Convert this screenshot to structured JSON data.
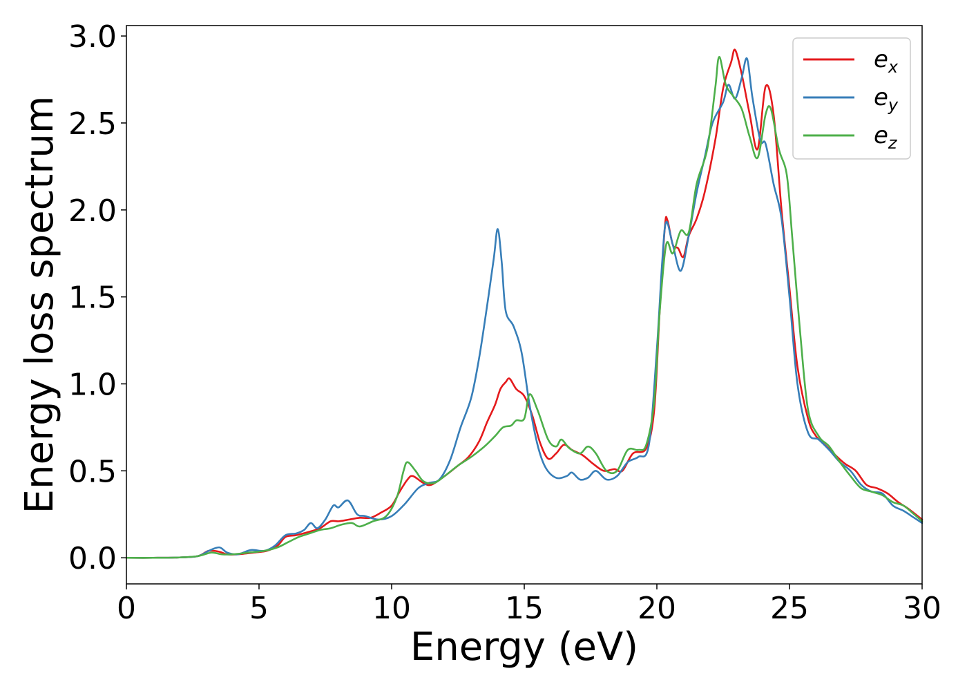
{
  "chart_data": {
    "type": "line",
    "xlabel": "Energy (eV)",
    "ylabel": "Energy loss spectrum",
    "xlim": [
      0,
      30
    ],
    "ylim": [
      -0.15,
      3.06
    ],
    "xticks": [
      0,
      5,
      10,
      15,
      20,
      25,
      30
    ],
    "xtick_labels": [
      "0",
      "5",
      "10",
      "15",
      "20",
      "25",
      "30"
    ],
    "yticks": [
      0.0,
      0.5,
      1.0,
      1.5,
      2.0,
      2.5,
      3.0
    ],
    "ytick_labels": [
      "0.0",
      "0.5",
      "1.0",
      "1.5",
      "2.0",
      "2.5",
      "3.0"
    ],
    "grid": false,
    "legend_position": "top-right",
    "series": [
      {
        "name": "e",
        "subscript": "x",
        "color": "#e41a1c",
        "points": [
          [
            0,
            0.0
          ],
          [
            1,
            0.0
          ],
          [
            2,
            0.002
          ],
          [
            2.7,
            0.01
          ],
          [
            3.1,
            0.04
          ],
          [
            3.5,
            0.035
          ],
          [
            3.8,
            0.02
          ],
          [
            4.2,
            0.02
          ],
          [
            4.8,
            0.03
          ],
          [
            5.3,
            0.04
          ],
          [
            5.7,
            0.07
          ],
          [
            6.0,
            0.12
          ],
          [
            6.4,
            0.13
          ],
          [
            6.9,
            0.15
          ],
          [
            7.3,
            0.17
          ],
          [
            7.7,
            0.21
          ],
          [
            8.0,
            0.21
          ],
          [
            8.4,
            0.22
          ],
          [
            8.8,
            0.23
          ],
          [
            9.2,
            0.23
          ],
          [
            9.6,
            0.26
          ],
          [
            10.0,
            0.3
          ],
          [
            10.3,
            0.38
          ],
          [
            10.6,
            0.45
          ],
          [
            10.8,
            0.47
          ],
          [
            11.2,
            0.43
          ],
          [
            11.5,
            0.42
          ],
          [
            12.0,
            0.47
          ],
          [
            12.5,
            0.53
          ],
          [
            12.9,
            0.58
          ],
          [
            13.3,
            0.67
          ],
          [
            13.6,
            0.78
          ],
          [
            13.9,
            0.88
          ],
          [
            14.1,
            0.97
          ],
          [
            14.3,
            1.01
          ],
          [
            14.45,
            1.03
          ],
          [
            14.7,
            0.97
          ],
          [
            15.0,
            0.93
          ],
          [
            15.3,
            0.82
          ],
          [
            15.6,
            0.66
          ],
          [
            15.9,
            0.57
          ],
          [
            16.2,
            0.6
          ],
          [
            16.5,
            0.65
          ],
          [
            16.8,
            0.62
          ],
          [
            17.2,
            0.59
          ],
          [
            17.6,
            0.54
          ],
          [
            18.0,
            0.5
          ],
          [
            18.4,
            0.51
          ],
          [
            18.7,
            0.5
          ],
          [
            19.1,
            0.6
          ],
          [
            19.6,
            0.63
          ],
          [
            19.9,
            0.85
          ],
          [
            20.1,
            1.4
          ],
          [
            20.3,
            1.9
          ],
          [
            20.4,
            1.94
          ],
          [
            20.6,
            1.8
          ],
          [
            20.8,
            1.78
          ],
          [
            21.0,
            1.73
          ],
          [
            21.2,
            1.85
          ],
          [
            21.5,
            1.95
          ],
          [
            21.8,
            2.1
          ],
          [
            22.2,
            2.4
          ],
          [
            22.5,
            2.7
          ],
          [
            22.8,
            2.85
          ],
          [
            22.95,
            2.92
          ],
          [
            23.2,
            2.78
          ],
          [
            23.5,
            2.55
          ],
          [
            23.8,
            2.35
          ],
          [
            24.1,
            2.71
          ],
          [
            24.4,
            2.55
          ],
          [
            24.7,
            2.0
          ],
          [
            25.0,
            1.55
          ],
          [
            25.3,
            1.1
          ],
          [
            25.7,
            0.8
          ],
          [
            26.0,
            0.7
          ],
          [
            26.4,
            0.64
          ],
          [
            26.8,
            0.58
          ],
          [
            27.1,
            0.54
          ],
          [
            27.5,
            0.5
          ],
          [
            27.9,
            0.42
          ],
          [
            28.3,
            0.4
          ],
          [
            28.7,
            0.37
          ],
          [
            29.1,
            0.32
          ],
          [
            29.5,
            0.28
          ],
          [
            30,
            0.22
          ]
        ]
      },
      {
        "name": "e",
        "subscript": "y",
        "color": "#377eb8",
        "points": [
          [
            0,
            0.0
          ],
          [
            1,
            0.0
          ],
          [
            2,
            0.002
          ],
          [
            2.7,
            0.01
          ],
          [
            3.1,
            0.04
          ],
          [
            3.5,
            0.06
          ],
          [
            3.8,
            0.03
          ],
          [
            4.2,
            0.02
          ],
          [
            4.7,
            0.045
          ],
          [
            5.2,
            0.04
          ],
          [
            5.6,
            0.07
          ],
          [
            6.0,
            0.13
          ],
          [
            6.4,
            0.14
          ],
          [
            6.7,
            0.16
          ],
          [
            6.95,
            0.2
          ],
          [
            7.2,
            0.17
          ],
          [
            7.5,
            0.22
          ],
          [
            7.8,
            0.3
          ],
          [
            8.0,
            0.29
          ],
          [
            8.35,
            0.33
          ],
          [
            8.7,
            0.25
          ],
          [
            9.0,
            0.24
          ],
          [
            9.5,
            0.22
          ],
          [
            10.0,
            0.24
          ],
          [
            10.5,
            0.31
          ],
          [
            11.0,
            0.4
          ],
          [
            11.4,
            0.43
          ],
          [
            11.8,
            0.45
          ],
          [
            12.2,
            0.56
          ],
          [
            12.6,
            0.75
          ],
          [
            13.0,
            0.92
          ],
          [
            13.3,
            1.15
          ],
          [
            13.6,
            1.45
          ],
          [
            13.85,
            1.72
          ],
          [
            14.0,
            1.89
          ],
          [
            14.15,
            1.7
          ],
          [
            14.3,
            1.42
          ],
          [
            14.6,
            1.33
          ],
          [
            14.9,
            1.18
          ],
          [
            15.2,
            0.88
          ],
          [
            15.5,
            0.65
          ],
          [
            15.8,
            0.52
          ],
          [
            16.2,
            0.46
          ],
          [
            16.6,
            0.47
          ],
          [
            16.8,
            0.49
          ],
          [
            17.1,
            0.45
          ],
          [
            17.4,
            0.46
          ],
          [
            17.7,
            0.5
          ],
          [
            18.1,
            0.45
          ],
          [
            18.5,
            0.47
          ],
          [
            18.9,
            0.55
          ],
          [
            19.3,
            0.58
          ],
          [
            19.7,
            0.65
          ],
          [
            20.0,
            1.2
          ],
          [
            20.2,
            1.7
          ],
          [
            20.35,
            1.93
          ],
          [
            20.6,
            1.8
          ],
          [
            20.9,
            1.65
          ],
          [
            21.2,
            1.85
          ],
          [
            21.5,
            2.1
          ],
          [
            21.8,
            2.3
          ],
          [
            22.1,
            2.5
          ],
          [
            22.5,
            2.62
          ],
          [
            22.7,
            2.72
          ],
          [
            22.95,
            2.64
          ],
          [
            23.2,
            2.76
          ],
          [
            23.4,
            2.87
          ],
          [
            23.6,
            2.65
          ],
          [
            23.9,
            2.4
          ],
          [
            24.1,
            2.38
          ],
          [
            24.4,
            2.15
          ],
          [
            24.7,
            1.95
          ],
          [
            25.0,
            1.5
          ],
          [
            25.3,
            1.0
          ],
          [
            25.7,
            0.72
          ],
          [
            26.1,
            0.68
          ],
          [
            26.5,
            0.62
          ],
          [
            26.9,
            0.55
          ],
          [
            27.3,
            0.5
          ],
          [
            27.7,
            0.42
          ],
          [
            28.1,
            0.38
          ],
          [
            28.5,
            0.37
          ],
          [
            28.9,
            0.3
          ],
          [
            29.3,
            0.27
          ],
          [
            29.7,
            0.23
          ],
          [
            30,
            0.2
          ]
        ]
      },
      {
        "name": "e",
        "subscript": "z",
        "color": "#4daf4a",
        "points": [
          [
            0,
            0.0
          ],
          [
            1,
            0.0
          ],
          [
            2,
            0.002
          ],
          [
            2.7,
            0.01
          ],
          [
            3.2,
            0.03
          ],
          [
            3.6,
            0.02
          ],
          [
            4.0,
            0.02
          ],
          [
            4.6,
            0.03
          ],
          [
            5.2,
            0.04
          ],
          [
            5.7,
            0.06
          ],
          [
            6.1,
            0.09
          ],
          [
            6.5,
            0.12
          ],
          [
            6.9,
            0.14
          ],
          [
            7.3,
            0.16
          ],
          [
            7.7,
            0.17
          ],
          [
            8.1,
            0.19
          ],
          [
            8.5,
            0.2
          ],
          [
            8.8,
            0.18
          ],
          [
            9.3,
            0.21
          ],
          [
            9.8,
            0.24
          ],
          [
            10.2,
            0.35
          ],
          [
            10.45,
            0.5
          ],
          [
            10.6,
            0.55
          ],
          [
            10.9,
            0.5
          ],
          [
            11.2,
            0.44
          ],
          [
            11.6,
            0.43
          ],
          [
            12.0,
            0.47
          ],
          [
            12.5,
            0.53
          ],
          [
            13.0,
            0.58
          ],
          [
            13.5,
            0.64
          ],
          [
            13.9,
            0.7
          ],
          [
            14.2,
            0.75
          ],
          [
            14.5,
            0.76
          ],
          [
            14.7,
            0.79
          ],
          [
            15.0,
            0.8
          ],
          [
            15.2,
            0.94
          ],
          [
            15.5,
            0.85
          ],
          [
            15.9,
            0.68
          ],
          [
            16.2,
            0.64
          ],
          [
            16.4,
            0.68
          ],
          [
            16.7,
            0.63
          ],
          [
            17.1,
            0.6
          ],
          [
            17.4,
            0.64
          ],
          [
            17.7,
            0.6
          ],
          [
            18.1,
            0.5
          ],
          [
            18.5,
            0.5
          ],
          [
            18.9,
            0.62
          ],
          [
            19.3,
            0.62
          ],
          [
            19.6,
            0.65
          ],
          [
            19.9,
            0.9
          ],
          [
            20.1,
            1.4
          ],
          [
            20.35,
            1.8
          ],
          [
            20.6,
            1.75
          ],
          [
            20.9,
            1.88
          ],
          [
            21.2,
            1.87
          ],
          [
            21.5,
            2.15
          ],
          [
            21.9,
            2.35
          ],
          [
            22.2,
            2.7
          ],
          [
            22.35,
            2.88
          ],
          [
            22.6,
            2.72
          ],
          [
            22.9,
            2.65
          ],
          [
            23.2,
            2.58
          ],
          [
            23.5,
            2.42
          ],
          [
            23.8,
            2.3
          ],
          [
            24.1,
            2.55
          ],
          [
            24.3,
            2.58
          ],
          [
            24.6,
            2.35
          ],
          [
            24.9,
            2.2
          ],
          [
            25.1,
            1.85
          ],
          [
            25.4,
            1.3
          ],
          [
            25.7,
            0.85
          ],
          [
            26.1,
            0.7
          ],
          [
            26.5,
            0.64
          ],
          [
            26.9,
            0.55
          ],
          [
            27.3,
            0.47
          ],
          [
            27.7,
            0.4
          ],
          [
            28.1,
            0.38
          ],
          [
            28.5,
            0.36
          ],
          [
            28.9,
            0.32
          ],
          [
            29.3,
            0.3
          ],
          [
            29.7,
            0.25
          ],
          [
            30,
            0.21
          ]
        ]
      }
    ]
  }
}
